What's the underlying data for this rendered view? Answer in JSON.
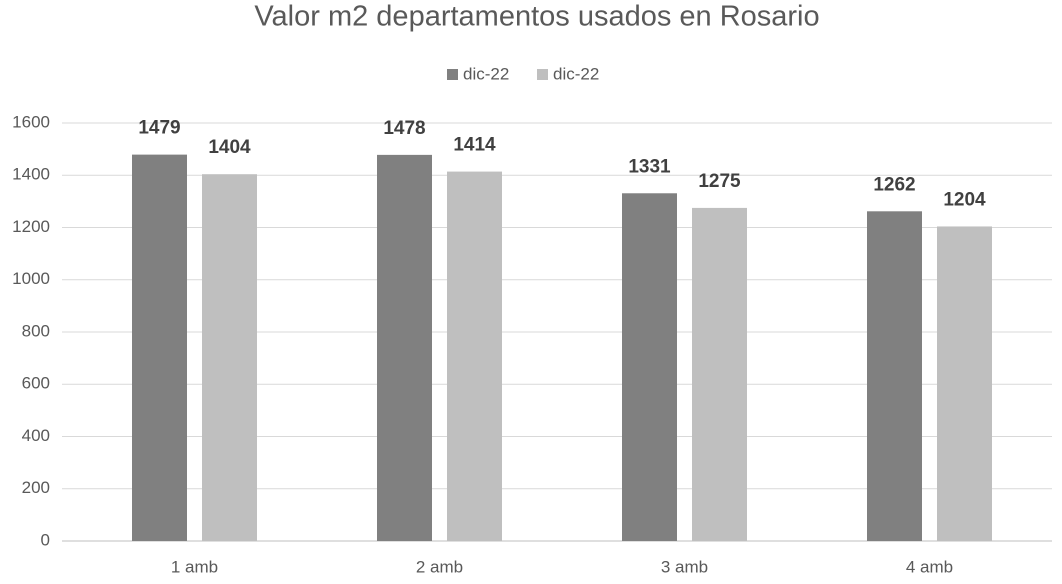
{
  "chart_data": {
    "type": "bar",
    "title": "Valor m2 departamentos usados en Rosario",
    "categories": [
      "1 amb",
      "2 amb",
      "3 amb",
      "4 amb"
    ],
    "series": [
      {
        "name": "dic-22",
        "color": "#808080",
        "values": [
          1479,
          1478,
          1331,
          1262
        ]
      },
      {
        "name": "dic-22",
        "color": "#bfbfbf",
        "values": [
          1404,
          1414,
          1275,
          1204
        ]
      }
    ],
    "ylim": [
      0,
      1600
    ],
    "yticks": [
      0,
      200,
      400,
      600,
      800,
      1000,
      1200,
      1400,
      1600
    ],
    "grid": true,
    "legend": "top"
  }
}
